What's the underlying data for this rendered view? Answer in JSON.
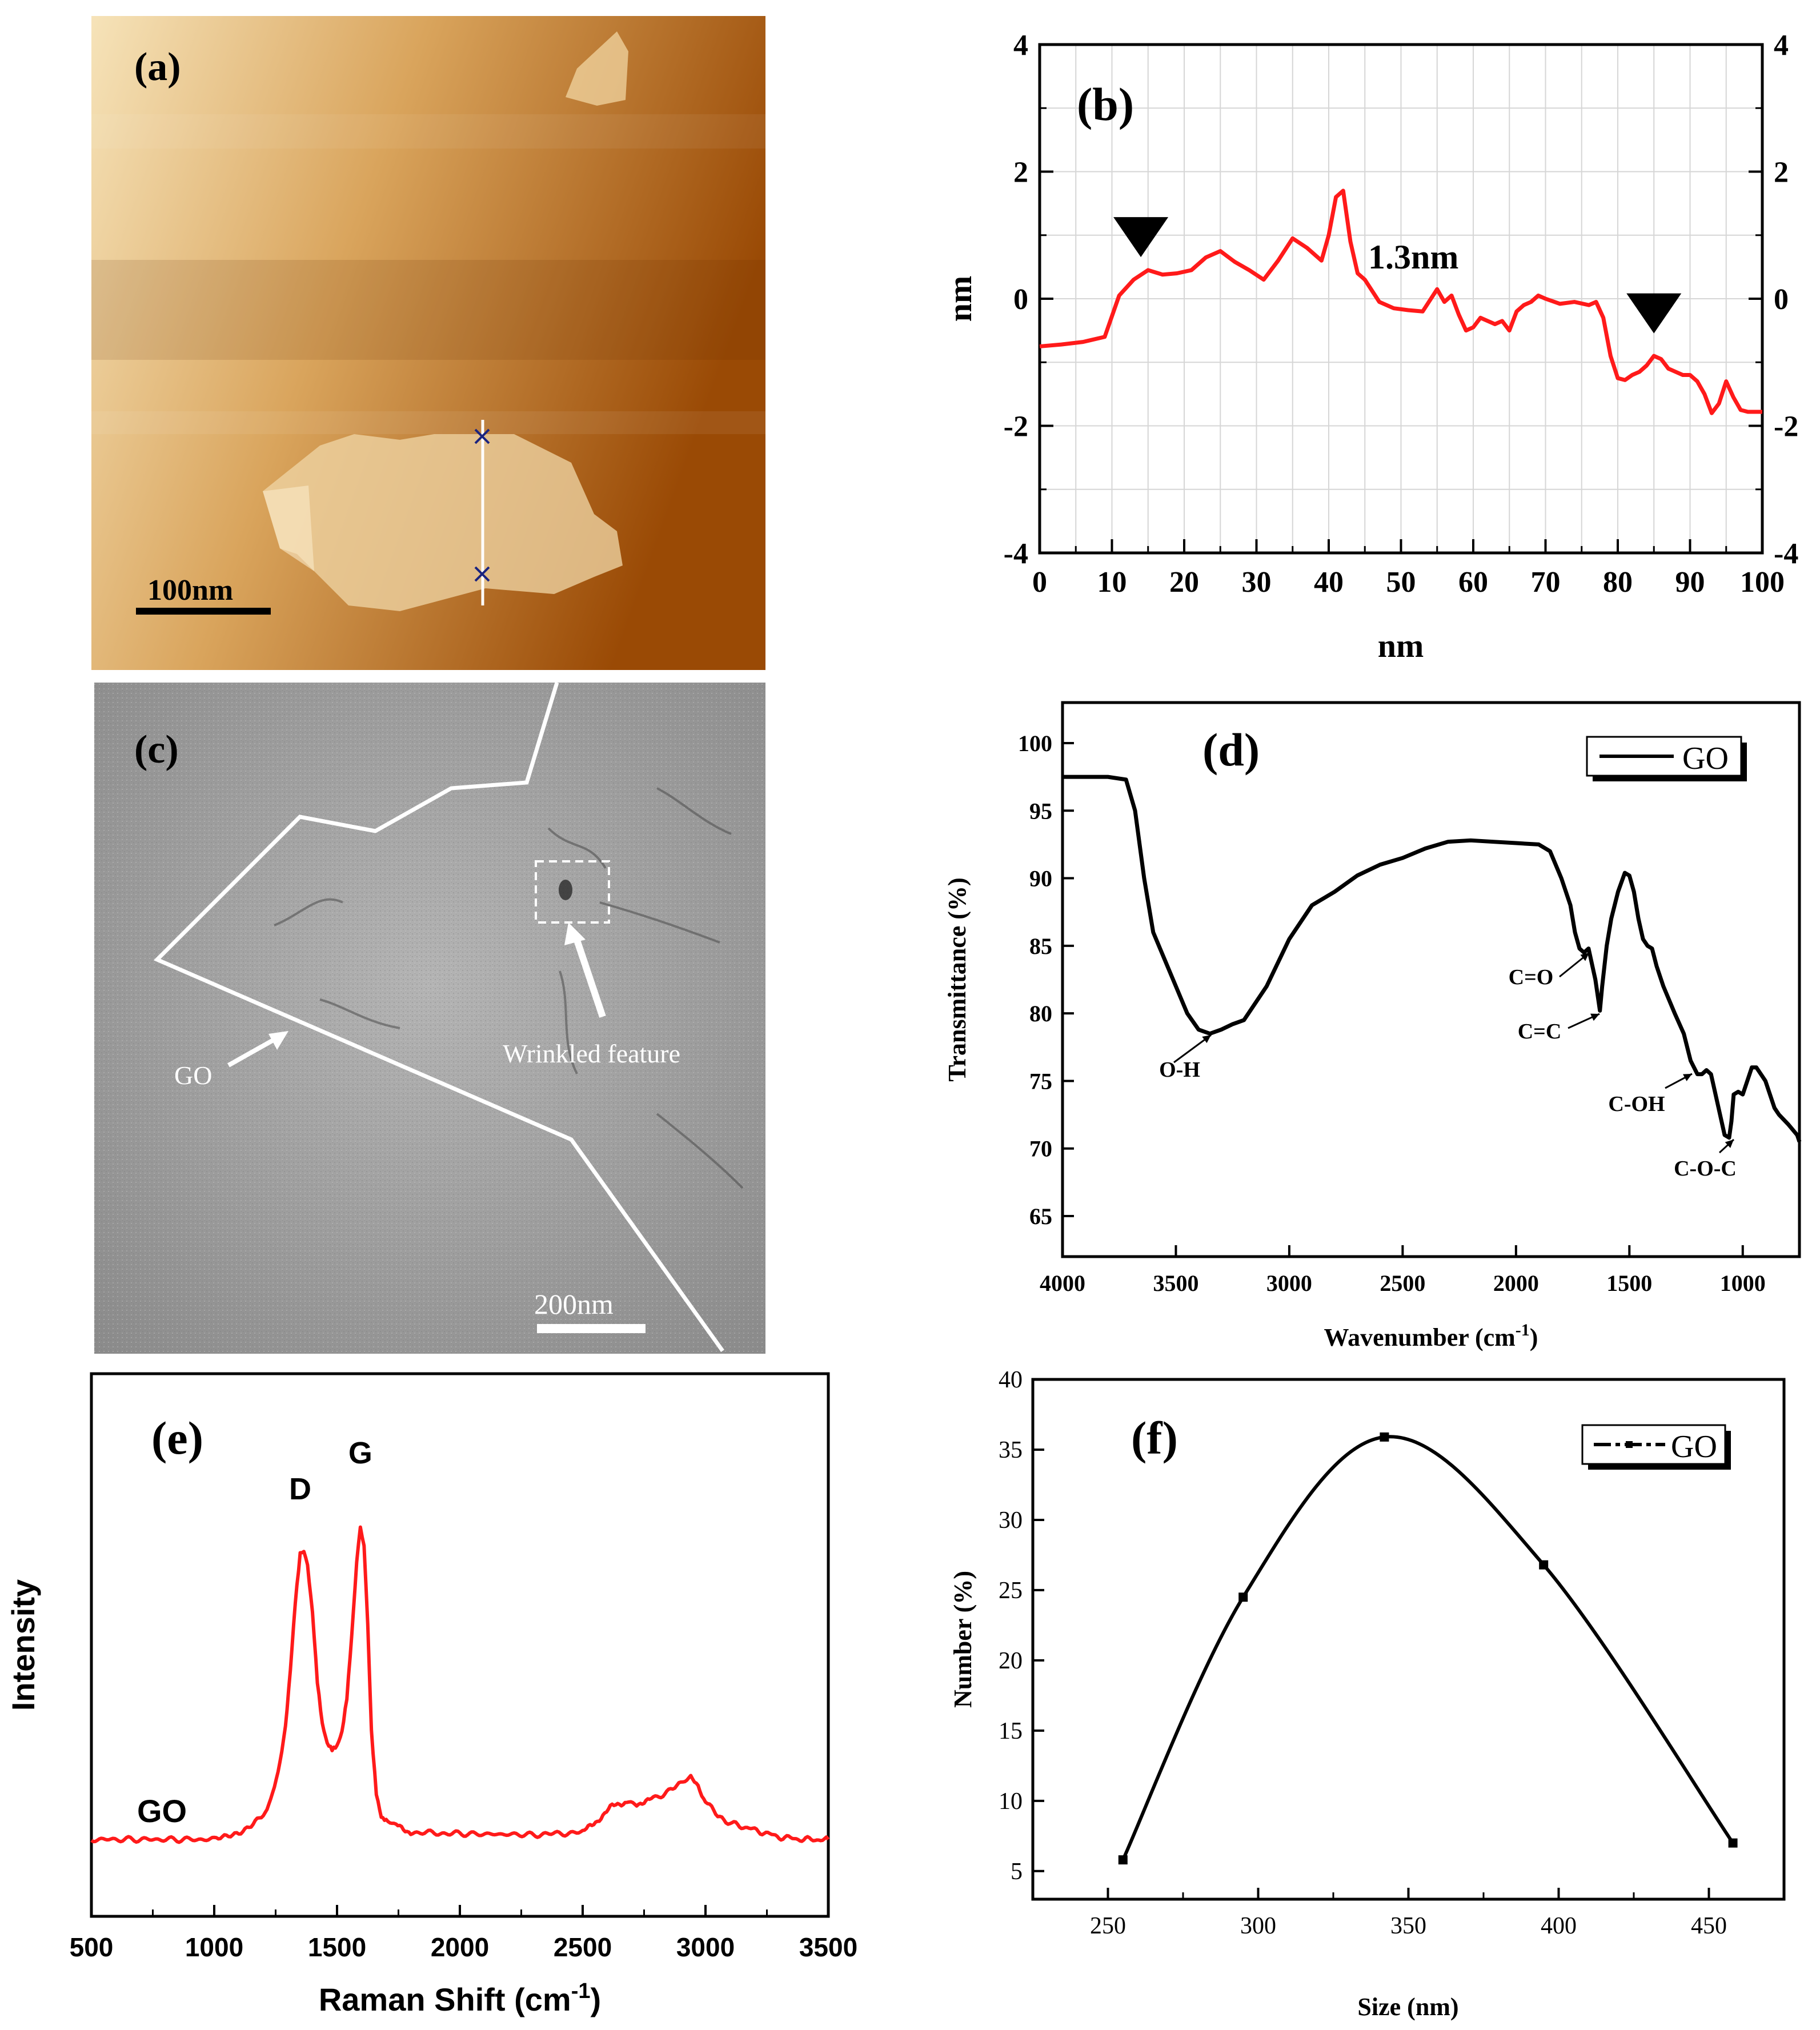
{
  "figure": "GO characterization",
  "colors": {
    "red": "#ff1a1a",
    "black": "#000000",
    "afm_light": "#f3dcae",
    "afm_dark": "#9a4a05",
    "tem_gray": "#9b9b9b"
  },
  "panel_a": {
    "label": "(a)",
    "scale_bar": "100nm"
  },
  "panel_c": {
    "label": "(c)",
    "scale_bar": "200nm",
    "go_label": "GO",
    "wrinkle_label": "Wrinkled feature"
  },
  "chart_data": [
    {
      "id": "b",
      "type": "line",
      "label": "(b)",
      "xlabel": "nm",
      "ylabel": "nm",
      "xlim": [
        0,
        100
      ],
      "ylim": [
        -4,
        4
      ],
      "xticks": [
        "0",
        "10",
        "20",
        "30",
        "40",
        "50",
        "60",
        "70",
        "80",
        "90",
        "100"
      ],
      "yticks": [
        "4",
        "2",
        "0",
        "-2",
        "-4"
      ],
      "annotation": "1.3nm",
      "markers": [
        [
          14,
          0.7
        ],
        [
          85,
          -0.5
        ]
      ],
      "x": [
        0,
        3,
        6,
        9,
        11,
        13,
        15,
        17,
        19,
        21,
        23,
        25,
        27,
        29,
        31,
        33,
        35,
        37,
        39,
        40,
        41,
        42,
        43,
        44,
        45,
        47,
        49,
        51,
        53,
        55,
        56,
        57,
        58,
        59,
        60,
        61,
        62,
        63,
        64,
        65,
        66,
        67,
        68,
        69,
        70,
        72,
        74,
        76,
        77,
        78,
        79,
        80,
        81,
        82,
        83,
        84,
        85,
        86,
        87,
        88,
        89,
        90,
        91,
        92,
        93,
        94,
        95,
        96,
        97,
        98,
        100
      ],
      "y": [
        -0.75,
        -0.72,
        -0.68,
        -0.6,
        0.05,
        0.3,
        0.45,
        0.38,
        0.4,
        0.45,
        0.65,
        0.75,
        0.58,
        0.45,
        0.3,
        0.6,
        0.95,
        0.8,
        0.6,
        1.0,
        1.6,
        1.7,
        0.9,
        0.4,
        0.3,
        -0.05,
        -0.15,
        -0.18,
        -0.2,
        0.15,
        -0.05,
        0.05,
        -0.25,
        -0.5,
        -0.45,
        -0.3,
        -0.35,
        -0.4,
        -0.35,
        -0.5,
        -0.2,
        -0.1,
        -0.05,
        0.05,
        0.0,
        -0.08,
        -0.05,
        -0.1,
        -0.05,
        -0.3,
        -0.9,
        -1.25,
        -1.28,
        -1.2,
        -1.15,
        -1.05,
        -0.9,
        -0.95,
        -1.1,
        -1.15,
        -1.2,
        -1.2,
        -1.3,
        -1.5,
        -1.8,
        -1.65,
        -1.3,
        -1.55,
        -1.75,
        -1.78,
        -1.78
      ]
    },
    {
      "id": "d",
      "type": "line",
      "label": "(d)",
      "xlabel": "Wavenumber (cm",
      "xlabel_sup": "-1",
      "xlabel_end": ")",
      "ylabel": "Transmittance (%)",
      "xlim": [
        4000,
        750
      ],
      "ylim": [
        62,
        103
      ],
      "xticks": [
        "4000",
        "3500",
        "3000",
        "2500",
        "2000",
        "1500",
        "1000"
      ],
      "yticks": [
        "100",
        "95",
        "90",
        "85",
        "80",
        "75",
        "70",
        "65"
      ],
      "legend": "GO",
      "peaks": [
        "O-H",
        "C=O",
        "C=C",
        "C-OH",
        "C-O-C"
      ],
      "x": [
        4000,
        3800,
        3720,
        3680,
        3640,
        3600,
        3550,
        3500,
        3450,
        3400,
        3350,
        3300,
        3250,
        3200,
        3100,
        3000,
        2900,
        2800,
        2700,
        2600,
        2500,
        2400,
        2300,
        2200,
        2100,
        2000,
        1900,
        1850,
        1800,
        1760,
        1740,
        1720,
        1700,
        1680,
        1650,
        1630,
        1620,
        1600,
        1580,
        1550,
        1520,
        1500,
        1480,
        1460,
        1440,
        1420,
        1400,
        1380,
        1350,
        1300,
        1260,
        1230,
        1200,
        1180,
        1160,
        1140,
        1120,
        1100,
        1080,
        1060,
        1050,
        1040,
        1020,
        1000,
        980,
        960,
        940,
        920,
        900,
        880,
        860,
        840,
        800,
        760,
        750
      ],
      "y": [
        97.5,
        97.5,
        97.3,
        95,
        90,
        86,
        84,
        82,
        80,
        78.8,
        78.5,
        78.8,
        79.2,
        79.5,
        82,
        85.5,
        88,
        89,
        90.2,
        91,
        91.5,
        92.2,
        92.7,
        92.8,
        92.7,
        92.6,
        92.5,
        92,
        90,
        88,
        86,
        84.8,
        84.5,
        84.8,
        82.5,
        80.2,
        82,
        85,
        87,
        89,
        90.4,
        90.2,
        89,
        87,
        85.5,
        85,
        84.8,
        83.5,
        82,
        80,
        78.5,
        76.5,
        75.5,
        75.5,
        75.8,
        75.5,
        74,
        72.5,
        71,
        70.8,
        72,
        74,
        74.2,
        74,
        75,
        76,
        76,
        75.5,
        75,
        74,
        73,
        72.5,
        71.8,
        71,
        70.5
      ]
    },
    {
      "id": "e",
      "type": "line",
      "label": "(e)",
      "xlabel": "Raman Shift (cm",
      "xlabel_sup": "-1",
      "xlabel_end": ")",
      "ylabel": "Intensity",
      "xlim": [
        500,
        3500
      ],
      "ylim": [
        0,
        100
      ],
      "xticks": [
        "500",
        "1000",
        "1500",
        "2000",
        "2500",
        "3000",
        "3500"
      ],
      "series_label": "GO",
      "peaks": [
        "D",
        "G"
      ],
      "x": [
        500,
        1000,
        1050,
        1100,
        1150,
        1200,
        1230,
        1260,
        1290,
        1310,
        1330,
        1350,
        1365,
        1380,
        1400,
        1420,
        1440,
        1460,
        1480,
        1500,
        1520,
        1540,
        1560,
        1580,
        1595,
        1610,
        1625,
        1640,
        1660,
        1680,
        1700,
        1740,
        1800,
        2000,
        2300,
        2500,
        2560,
        2620,
        2680,
        2720,
        2780,
        2850,
        2900,
        2940,
        2970,
        3000,
        3050,
        3100,
        3200,
        3300,
        3400,
        3500
      ],
      "y": [
        12,
        12,
        12.5,
        13.5,
        15,
        17,
        20,
        26,
        36,
        48,
        62,
        72,
        73,
        70,
        60,
        45,
        36,
        32,
        31,
        32,
        35,
        42,
        55,
        70,
        78,
        74,
        58,
        35,
        22,
        17,
        16,
        15,
        13.5,
        13.2,
        13,
        13.5,
        16,
        19,
        20,
        19.5,
        20.5,
        22,
        24,
        25,
        23,
        20,
        17,
        15.5,
        14,
        12.5,
        12,
        12
      ]
    },
    {
      "id": "f",
      "type": "line",
      "label": "(f)",
      "xlabel": "Size (nm)",
      "ylabel": "Number (%)",
      "xlim": [
        225,
        475
      ],
      "ylim": [
        3,
        40
      ],
      "xticks": [
        "250",
        "300",
        "350",
        "400",
        "450"
      ],
      "yticks": [
        "40",
        "35",
        "30",
        "25",
        "20",
        "15",
        "10",
        "5"
      ],
      "legend": "GO",
      "x": [
        255,
        295,
        342,
        395,
        458
      ],
      "y": [
        5.8,
        24.5,
        35.9,
        26.8,
        7.0
      ]
    }
  ]
}
